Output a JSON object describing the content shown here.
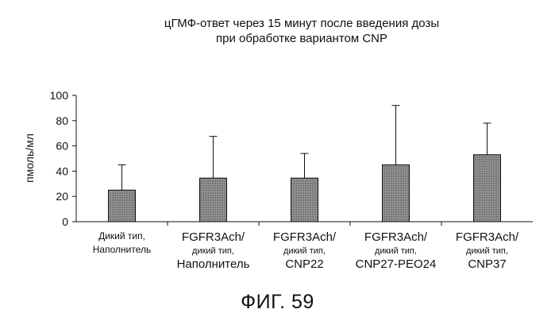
{
  "chart_data": {
    "type": "bar",
    "title": [
      "цГМФ-ответ через 15 минут после введения дозы",
      "при обработке вариантом CNP"
    ],
    "ylabel": "пмоль/мл",
    "xlabel": "",
    "ylim": [
      0,
      100
    ],
    "yticks": [
      0,
      20,
      40,
      60,
      80,
      100
    ],
    "categories": [
      [
        "Дикий тип,",
        "Наполнитель"
      ],
      [
        "FGFR3Ach/",
        "дикий тип,",
        "Наполнитель"
      ],
      [
        "FGFR3Ach/",
        "дикий тип,",
        "CNP22"
      ],
      [
        "FGFR3Ach/",
        "дикий тип,",
        "CNP27-PEO24"
      ],
      [
        "FGFR3Ach/",
        "дикий тип,",
        "CNP37"
      ]
    ],
    "values": [
      25,
      34.5,
      34.5,
      45,
      53
    ],
    "error_upper": [
      45,
      67.5,
      54,
      92,
      78
    ],
    "bar_color": "#8a8a8a",
    "grid": false,
    "legend": "none"
  },
  "figure": {
    "caption": "ФИГ. 59"
  }
}
